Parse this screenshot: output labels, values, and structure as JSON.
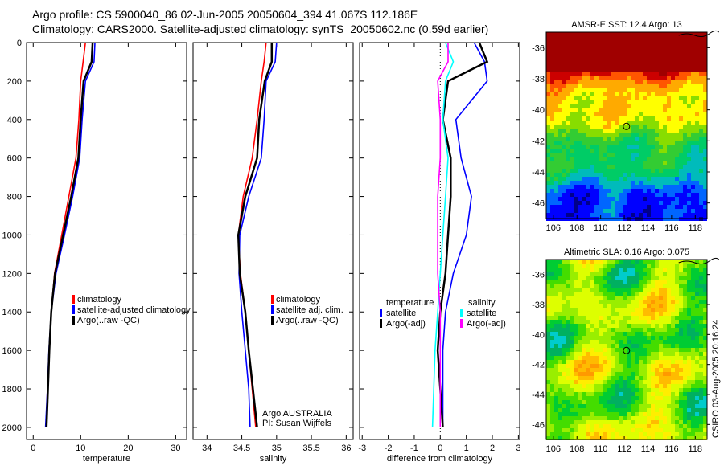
{
  "header": {
    "line1": "Argo profile: CS 5900040_86 02-Jun-2005 20050604_394 41.067S 112.186E",
    "line2": "Climatology: CARS2000. Satellite-adjusted climatology: synTS_20050602.nc (0.59d earlier)"
  },
  "credit": "CSIRO 03-Aug-2005 20:16:24",
  "colors": {
    "climatology": "#ff0000",
    "satellite": "#0000ff",
    "argo": "#000000",
    "sal_sat": "#00ffff",
    "sal_argo": "#ff00ff"
  },
  "chart_data": [
    {
      "type": "line",
      "xlabel": "temperature",
      "ylabel": "depth",
      "xlim": [
        -1.4,
        32.3
      ],
      "ylim": [
        0,
        2063
      ],
      "xticks": [
        0,
        10,
        20,
        30
      ],
      "yticks": [
        0,
        200,
        400,
        600,
        800,
        1000,
        1200,
        1400,
        1600,
        1800,
        2000
      ],
      "depth": [
        0,
        100,
        200,
        400,
        600,
        800,
        1000,
        1200,
        1400,
        1600,
        1800,
        2000
      ],
      "series": [
        {
          "name": "climatology",
          "color": "#ff0000",
          "values": [
            11,
            10.5,
            10,
            9.6,
            9,
            7.5,
            6,
            4.5,
            3.8,
            3.4,
            3,
            2.7
          ]
        },
        {
          "name": "satellite-adjusted climatology",
          "color": "#0000ff",
          "values": [
            13,
            12.8,
            11,
            10.3,
            9.8,
            8.3,
            6.6,
            4.8,
            3.8,
            3.3,
            3.0,
            2.6
          ]
        },
        {
          "name": "Argo(..raw -QC)",
          "color": "#000000",
          "values": [
            12.5,
            12.3,
            10.6,
            10,
            9.5,
            8,
            6.3,
            4.6,
            3.8,
            3.4,
            3.1,
            2.8
          ]
        }
      ]
    },
    {
      "type": "line",
      "xlabel": "salinity",
      "xlim": [
        33.8,
        36.1
      ],
      "ylim": [
        0,
        2063
      ],
      "xticks": [
        34,
        34.5,
        35,
        35.5,
        36
      ],
      "depth": [
        0,
        100,
        200,
        400,
        600,
        800,
        1000,
        1200,
        1400,
        1600,
        1800,
        2000
      ],
      "series": [
        {
          "name": "climatology",
          "color": "#ff0000",
          "values": [
            34.85,
            34.82,
            34.78,
            34.72,
            34.65,
            34.52,
            34.45,
            34.48,
            34.55,
            34.6,
            34.65,
            34.7
          ]
        },
        {
          "name": "satellite adj. clim.",
          "color": "#0000ff",
          "values": [
            35.0,
            34.98,
            34.85,
            34.82,
            34.78,
            34.6,
            34.47,
            34.46,
            34.5,
            34.55,
            34.6,
            34.62
          ]
        },
        {
          "name": "Argo(..raw -QC)",
          "color": "#000000",
          "values": [
            34.93,
            34.93,
            34.83,
            34.75,
            34.72,
            34.55,
            34.45,
            34.47,
            34.55,
            34.6,
            34.66,
            34.72
          ]
        }
      ],
      "annotations": [
        "Argo AUSTRALIA",
        "PI: Susan Wijffels"
      ]
    },
    {
      "type": "line",
      "xlabel": "difference from climatology",
      "xlim": [
        -3.1,
        3.05
      ],
      "ylim": [
        0,
        2063
      ],
      "xticks": [
        -3,
        -2,
        -1,
        0,
        1,
        2,
        3
      ],
      "legend_titles": [
        "temperature",
        "salinity"
      ],
      "depth": [
        0,
        100,
        200,
        400,
        600,
        800,
        1000,
        1200,
        1400,
        1600,
        1800,
        2000
      ],
      "series": [
        {
          "name": "satellite",
          "group": "temperature",
          "color": "#0000ff",
          "values": [
            1.3,
            1.7,
            1.8,
            0.6,
            0.8,
            1.2,
            1.0,
            0.5,
            0.2,
            0.1,
            0.1,
            0.1
          ]
        },
        {
          "name": "Argo(-adj)",
          "group": "temperature",
          "color": "#000000",
          "values": [
            1.5,
            1.8,
            0.3,
            0.1,
            0.4,
            0.4,
            0.3,
            0.2,
            0.0,
            -0.1,
            0.0,
            0.1
          ]
        },
        {
          "name": "satellite",
          "group": "salinity",
          "color": "#00ffff",
          "values": [
            0.2,
            0.5,
            0.2,
            0.1,
            0.3,
            0.2,
            0.1,
            0,
            -0.1,
            -0.2,
            -0.25,
            -0.3
          ]
        },
        {
          "name": "Argo(-adj)",
          "group": "salinity",
          "color": "#ff00ff",
          "values": [
            0.3,
            0.3,
            -0.1,
            0,
            0,
            -0.1,
            -0.1,
            -0.1,
            0,
            0,
            0,
            0
          ]
        }
      ]
    },
    {
      "type": "heatmap",
      "title": "AMSR-E SST: 12.4 Argo: 13",
      "xlim": [
        105.4,
        119
      ],
      "ylim": [
        -47,
        -35
      ],
      "xticks": [
        106,
        108,
        110,
        112,
        114,
        116,
        118
      ],
      "yticks": [
        -36,
        -38,
        -40,
        -42,
        -44,
        -46
      ],
      "point": [
        112.186,
        -41.067
      ]
    },
    {
      "type": "heatmap",
      "title": "Altimetric SLA: 0.16 Argo: 0.075",
      "xlim": [
        105.4,
        119
      ],
      "ylim": [
        -47,
        -35
      ],
      "xticks": [
        106,
        108,
        110,
        112,
        114,
        116,
        118
      ],
      "yticks": [
        -36,
        -38,
        -40,
        -42,
        -44,
        -46
      ],
      "point": [
        112.186,
        -41.067
      ]
    }
  ]
}
